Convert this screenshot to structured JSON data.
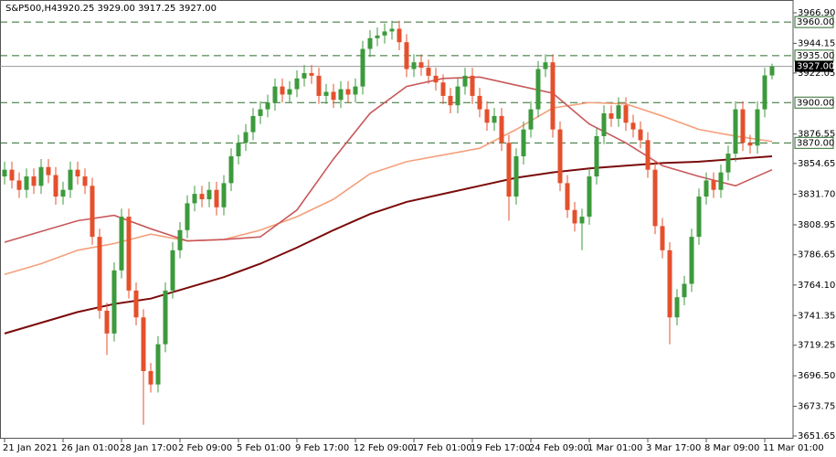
{
  "chart_data": {
    "type": "candlestick",
    "title": "S&P500,H4",
    "ohlc_label": "3920.25 3929.00 3917.25 3927.00",
    "categories": [
      "21 Jan 2021",
      null,
      null,
      null,
      null,
      null,
      null,
      null,
      "26 Jan 01:00",
      null,
      null,
      null,
      null,
      null,
      null,
      null,
      "28 Jan 17:00",
      null,
      null,
      null,
      null,
      null,
      null,
      null,
      "2 Feb 09:00",
      null,
      null,
      null,
      null,
      null,
      null,
      null,
      "5 Feb 01:00",
      null,
      null,
      null,
      null,
      null,
      null,
      null,
      "9 Feb 17:00",
      null,
      null,
      null,
      null,
      null,
      null,
      null,
      "12 Feb 09:00",
      null,
      null,
      null,
      null,
      null,
      null,
      null,
      "17 Feb 01:00",
      null,
      null,
      null,
      null,
      null,
      null,
      null,
      "19 Feb 17:00",
      null,
      null,
      null,
      null,
      null,
      null,
      null,
      "24 Feb 09:00",
      null,
      null,
      null,
      null,
      null,
      null,
      null,
      "1 Mar 01:00",
      null,
      null,
      null,
      null,
      null,
      null,
      null,
      "3 Mar 17:00",
      null,
      null,
      null,
      null,
      null,
      null,
      null,
      "8 Mar 09:00",
      null,
      null,
      null,
      null,
      null,
      null,
      null,
      "11 Mar 01:00",
      null
    ],
    "open": [
      3845,
      3850,
      3842,
      3835,
      3845,
      3838,
      3852,
      3846,
      3830,
      3835,
      3850,
      3845,
      3838,
      3800,
      3745,
      3728,
      3775,
      3815,
      3760,
      3740,
      3700,
      3690,
      3720,
      3760,
      3790,
      3805,
      3825,
      3832,
      3828,
      3835,
      3822,
      3840,
      3860,
      3870,
      3878,
      3890,
      3895,
      3900,
      3912,
      3906,
      3910,
      3918,
      3922,
      3920,
      3905,
      3908,
      3902,
      3910,
      3906,
      3912,
      3940,
      3948,
      3950,
      3953,
      3955,
      3945,
      3925,
      3930,
      3926,
      3920,
      3915,
      3905,
      3898,
      3912,
      3920,
      3905,
      3895,
      3885,
      3890,
      3870,
      3830,
      3860,
      3880,
      3895,
      3925,
      3930,
      3880,
      3840,
      3820,
      3810,
      3815,
      3845,
      3875,
      3892,
      3888,
      3898,
      3885,
      3880,
      3872,
      3850,
      3808,
      3790,
      3740,
      3755,
      3765,
      3800,
      3830,
      3842,
      3835,
      3848,
      3862,
      3895,
      3870,
      3868,
      3895,
      3920.25
    ],
    "high": [
      3856,
      3856,
      3848,
      3851,
      3851,
      3858,
      3858,
      3852,
      3841,
      3856,
      3856,
      3851,
      3844,
      3806,
      3751,
      3781,
      3821,
      3821,
      3766,
      3746,
      3706,
      3726,
      3766,
      3796,
      3811,
      3831,
      3838,
      3838,
      3841,
      3841,
      3846,
      3866,
      3876,
      3884,
      3896,
      3901,
      3906,
      3918,
      3918,
      3916,
      3924,
      3928,
      3928,
      3926,
      3914,
      3914,
      3916,
      3916,
      3918,
      3946,
      3954,
      3956,
      3959,
      3961,
      3961,
      3951,
      3936,
      3936,
      3932,
      3926,
      3921,
      3911,
      3918,
      3926,
      3926,
      3911,
      3901,
      3896,
      3896,
      3876,
      3866,
      3886,
      3901,
      3931,
      3936,
      3936,
      3886,
      3846,
      3826,
      3821,
      3851,
      3881,
      3898,
      3898,
      3904,
      3904,
      3891,
      3886,
      3878,
      3856,
      3814,
      3796,
      3761,
      3771,
      3806,
      3836,
      3848,
      3848,
      3854,
      3868,
      3901,
      3901,
      3876,
      3901,
      3926,
      3929
    ],
    "low": [
      3839,
      3836,
      3829,
      3829,
      3832,
      3832,
      3840,
      3824,
      3824,
      3829,
      3839,
      3832,
      3794,
      3739,
      3712,
      3722,
      3769,
      3754,
      3734,
      3660,
      3684,
      3684,
      3714,
      3754,
      3784,
      3799,
      3819,
      3822,
      3822,
      3816,
      3816,
      3834,
      3854,
      3864,
      3872,
      3884,
      3889,
      3894,
      3900,
      3900,
      3904,
      3912,
      3914,
      3899,
      3899,
      3896,
      3896,
      3900,
      3900,
      3906,
      3934,
      3942,
      3944,
      3947,
      3939,
      3919,
      3919,
      3920,
      3914,
      3909,
      3899,
      3892,
      3892,
      3906,
      3899,
      3889,
      3879,
      3879,
      3864,
      3812,
      3824,
      3854,
      3874,
      3889,
      3919,
      3874,
      3834,
      3814,
      3804,
      3790,
      3809,
      3839,
      3869,
      3882,
      3882,
      3879,
      3874,
      3866,
      3844,
      3802,
      3784,
      3720,
      3734,
      3749,
      3759,
      3794,
      3824,
      3829,
      3829,
      3842,
      3856,
      3864,
      3862,
      3862,
      3889,
      3917.25
    ],
    "close": [
      3850,
      3842,
      3835,
      3845,
      3838,
      3852,
      3846,
      3830,
      3835,
      3850,
      3845,
      3838,
      3800,
      3745,
      3728,
      3775,
      3815,
      3760,
      3740,
      3700,
      3690,
      3720,
      3760,
      3790,
      3805,
      3825,
      3832,
      3828,
      3835,
      3822,
      3840,
      3860,
      3870,
      3878,
      3890,
      3895,
      3900,
      3912,
      3906,
      3910,
      3918,
      3922,
      3920,
      3905,
      3908,
      3902,
      3910,
      3906,
      3912,
      3940,
      3948,
      3950,
      3953,
      3955,
      3945,
      3925,
      3930,
      3926,
      3920,
      3915,
      3905,
      3898,
      3912,
      3920,
      3905,
      3895,
      3885,
      3890,
      3870,
      3830,
      3860,
      3880,
      3895,
      3925,
      3930,
      3880,
      3840,
      3820,
      3810,
      3815,
      3845,
      3875,
      3892,
      3888,
      3898,
      3885,
      3880,
      3872,
      3850,
      3808,
      3790,
      3740,
      3755,
      3765,
      3800,
      3830,
      3842,
      3835,
      3848,
      3862,
      3895,
      3870,
      3868,
      3895,
      3920.25,
      3927
    ],
    "up_color": "#3c9a3c",
    "down_color": "#e4502c",
    "moving_averages": [
      {
        "color": "#7a0a0a",
        "x": [
          0,
          5,
          10,
          15,
          20,
          25,
          30,
          35,
          40,
          45,
          50,
          55,
          60,
          65,
          70,
          75,
          80,
          85,
          90,
          95,
          100,
          105
        ],
        "values": [
          3728,
          3736,
          3744,
          3750,
          3754,
          3762,
          3770,
          3780,
          3792,
          3805,
          3817,
          3826,
          3832,
          3838,
          3844,
          3848,
          3851,
          3853,
          3855,
          3856,
          3858,
          3860
        ]
      },
      {
        "color": "#f4a07c",
        "x": [
          0,
          5,
          10,
          15,
          20,
          25,
          30,
          35,
          40,
          45,
          50,
          55,
          60,
          65,
          70,
          75,
          80,
          85,
          90,
          95,
          100,
          105
        ],
        "values": [
          3772,
          3780,
          3790,
          3795,
          3802,
          3797,
          3798,
          3805,
          3815,
          3828,
          3847,
          3856,
          3861,
          3866,
          3880,
          3896,
          3900,
          3899,
          3890,
          3880,
          3875,
          3871
        ]
      },
      {
        "color": "#c8585a",
        "x": [
          0,
          5,
          10,
          15,
          20,
          25,
          30,
          35,
          40,
          45,
          50,
          55,
          60,
          65,
          70,
          75,
          80,
          85,
          90,
          95,
          100,
          105
        ],
        "values": [
          3796,
          3804,
          3812,
          3816,
          3806,
          3797,
          3798,
          3800,
          3820,
          3858,
          3892,
          3912,
          3918,
          3919,
          3913,
          3907,
          3884,
          3870,
          3853,
          3845,
          3838,
          3850
        ]
      }
    ],
    "levels": {
      "color": "#2e6b2e",
      "values": [
        3960,
        3935,
        3900,
        3870
      ],
      "value_labels": [
        "3960.00",
        "3935.00",
        "3900.00",
        "3870.00"
      ]
    },
    "current_price": {
      "value": 3927,
      "label": "3927.00"
    },
    "ylim": [
      3651.65,
      3966.9
    ],
    "yticks": [
      {
        "value": 3651.65,
        "label": "3651.65"
      },
      {
        "value": 3673.75,
        "label": "3673.75"
      },
      {
        "value": 3696.5,
        "label": "3696.50"
      },
      {
        "value": 3719.25,
        "label": "3719.25"
      },
      {
        "value": 3741.35,
        "label": "3741.35"
      },
      {
        "value": 3764.1,
        "label": "3764.10"
      },
      {
        "value": 3786.65,
        "label": "3786.65"
      },
      {
        "value": 3808.95,
        "label": "3808.95"
      },
      {
        "value": 3831.7,
        "label": "3831.70"
      },
      {
        "value": 3854.65,
        "label": "3854.65"
      },
      {
        "value": 3876.55,
        "label": "3876.55"
      },
      {
        "value": 3922.05,
        "label": "3922.05"
      },
      {
        "value": 3944.15,
        "label": "3944.15"
      },
      {
        "value": 3966.9,
        "label": "3966.90"
      }
    ],
    "grid": false
  }
}
